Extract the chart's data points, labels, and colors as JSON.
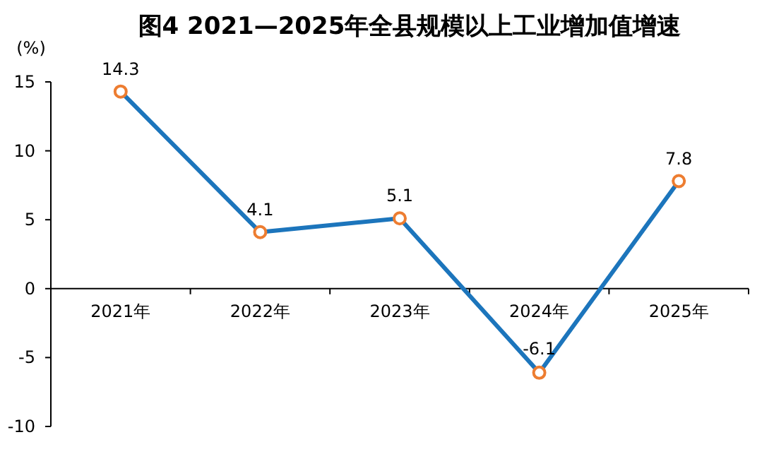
{
  "chart_data": {
    "type": "line",
    "title": "图4  2021—2025年全县规模以上工业增加值增速",
    "ylabel": "(%)",
    "categories": [
      "2021年",
      "2022年",
      "2023年",
      "2024年",
      "2025年"
    ],
    "series": [
      {
        "color": "#1c75bc",
        "values": [
          14.3,
          4.1,
          5.1,
          -6.1,
          7.8
        ]
      }
    ],
    "ylim": [
      -10,
      15
    ],
    "yticks": [
      -10,
      -5,
      0,
      5,
      10,
      15
    ],
    "data_labels": true,
    "marker": "circle",
    "grid": false
  }
}
